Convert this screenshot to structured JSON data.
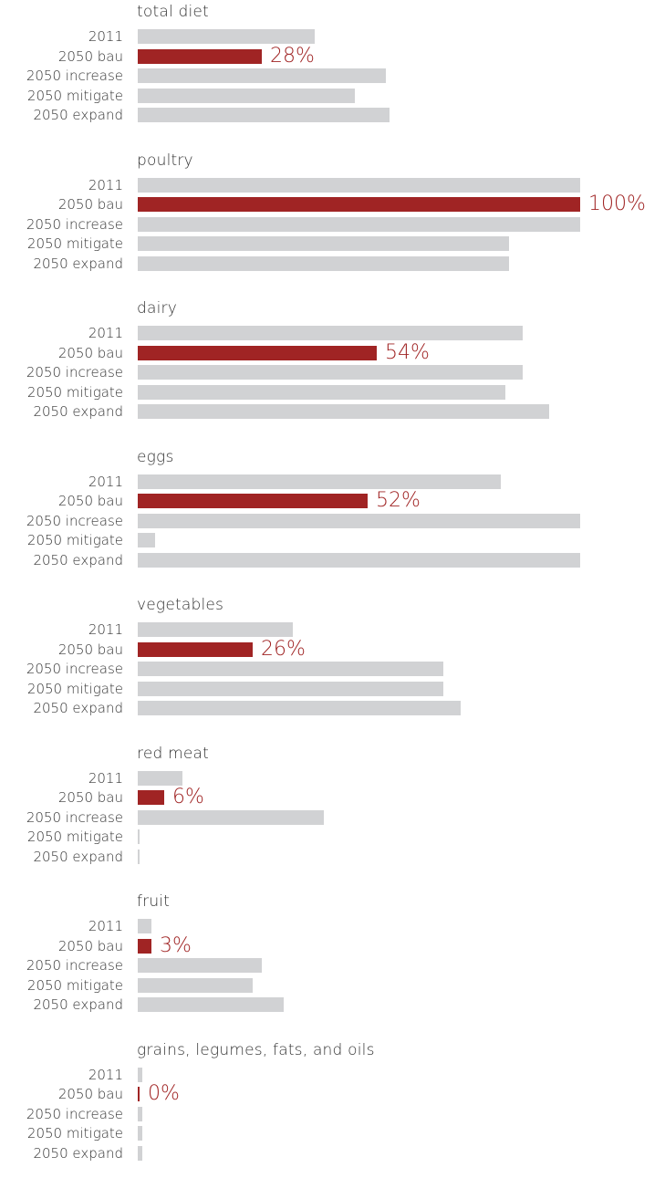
{
  "colors": {
    "highlight": "#a02424",
    "default": "#d1d2d4",
    "text": "#333333"
  },
  "chart_data": {
    "type": "bar",
    "orientation": "horizontal",
    "scale_max_percent": 100,
    "highlight_category": "2050 bau",
    "categories": [
      "2011",
      "2050 bau",
      "2050 increase",
      "2050 mitigate",
      "2050 expand"
    ],
    "panels": [
      {
        "title": "total diet",
        "values": [
          40,
          28,
          56,
          49,
          57
        ],
        "highlight_label": "28%"
      },
      {
        "title": "poultry",
        "values": [
          100,
          100,
          100,
          84,
          84
        ],
        "highlight_label": "100%"
      },
      {
        "title": "dairy",
        "values": [
          87,
          54,
          87,
          83,
          93
        ],
        "highlight_label": "54%"
      },
      {
        "title": "eggs",
        "values": [
          82,
          52,
          100,
          4,
          100
        ],
        "highlight_label": "52%"
      },
      {
        "title": "vegetables",
        "values": [
          35,
          26,
          69,
          69,
          73
        ],
        "highlight_label": "26%"
      },
      {
        "title": "red meat",
        "values": [
          10,
          6,
          42,
          0.4,
          0.4
        ],
        "highlight_label": "6%"
      },
      {
        "title": "fruit",
        "values": [
          3,
          3,
          28,
          26,
          33
        ],
        "highlight_label": "3%"
      },
      {
        "title": "grains, legumes, fats, and oils",
        "values": [
          1,
          0.4,
          1,
          1,
          1
        ],
        "highlight_label": "0%"
      }
    ]
  }
}
